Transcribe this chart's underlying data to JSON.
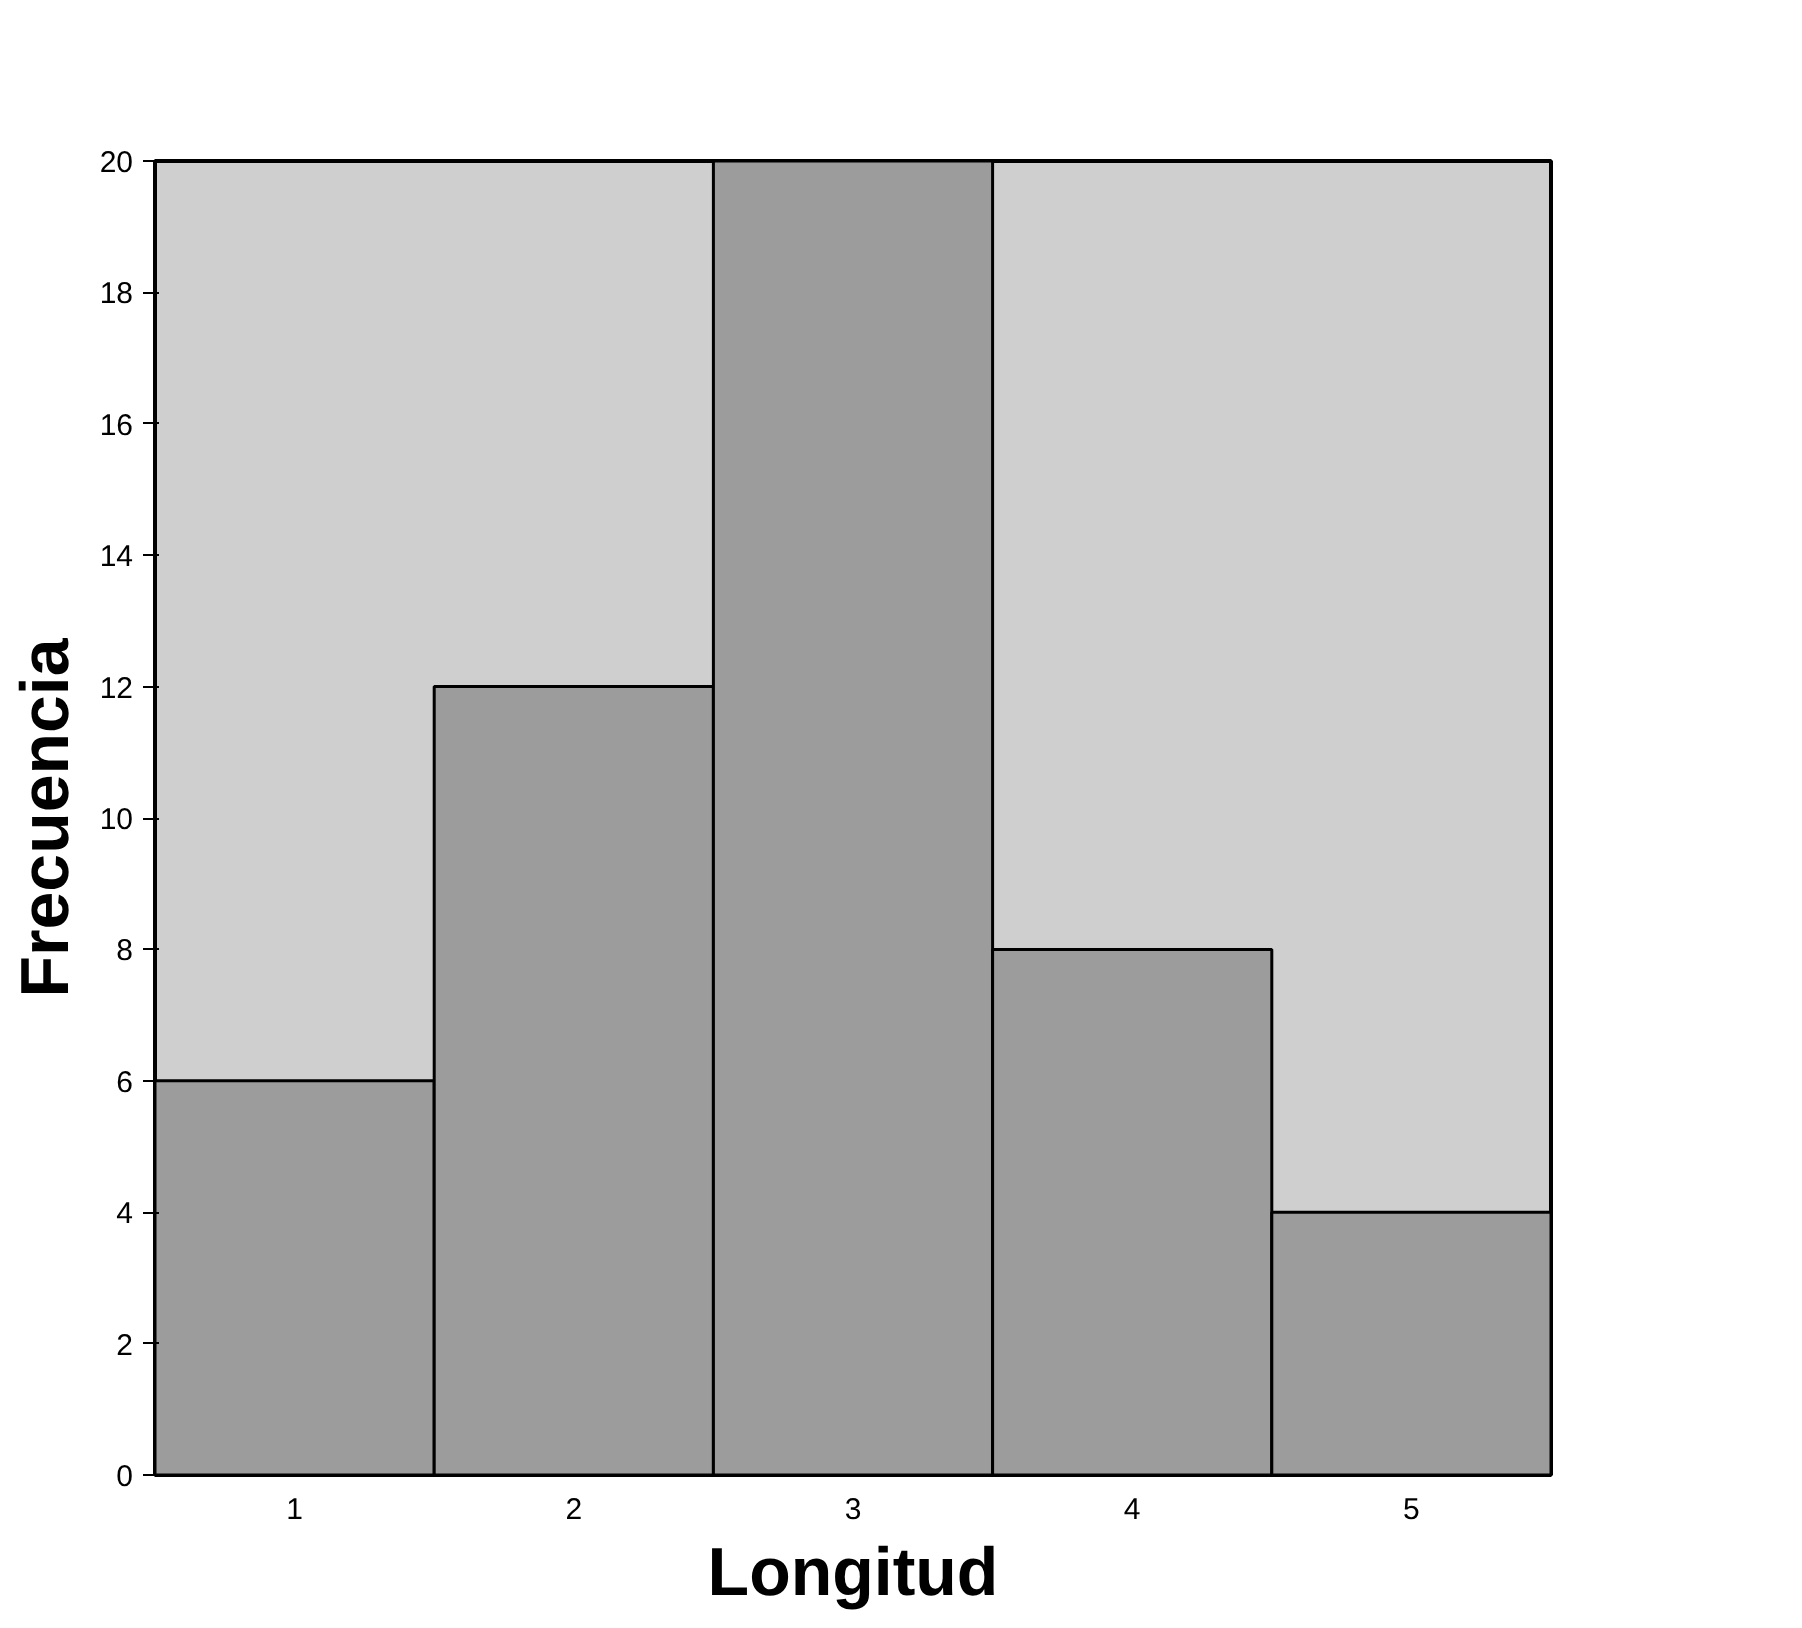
{
  "chart_data": {
    "type": "bar",
    "xlabel": "Longitud",
    "ylabel": "Frecuencia",
    "categories": [
      "1",
      "2",
      "3",
      "4",
      "5"
    ],
    "values": [
      6,
      12,
      20,
      8,
      4
    ],
    "color": "#9c9c9c",
    "ylim": [
      0,
      20
    ],
    "yticks": [
      0,
      2,
      4,
      6,
      8,
      10,
      12,
      14,
      16,
      18,
      20
    ],
    "grid": false
  }
}
